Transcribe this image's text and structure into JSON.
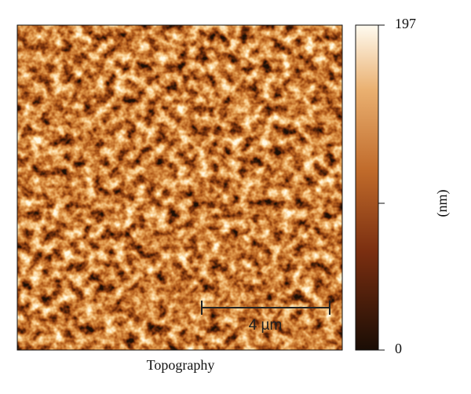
{
  "image": {
    "caption": "Topography",
    "scale_bar": "4 µm"
  },
  "colorbar": {
    "label": "(nm)",
    "range": [
      0,
      197
    ],
    "ticks": [
      0,
      197
    ]
  }
}
